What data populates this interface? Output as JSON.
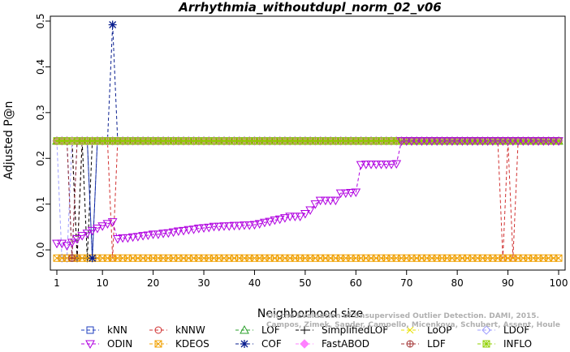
{
  "chart_data": {
    "type": "line",
    "title": "Arrhythmia_withoutdupl_norm_02_v06",
    "xlabel": "Neighborhood size",
    "ylabel": "Adjusted P@n",
    "xlim": [
      1,
      100
    ],
    "ylim": [
      -0.03,
      0.5
    ],
    "xticks": [
      1,
      10,
      20,
      30,
      40,
      50,
      60,
      70,
      80,
      90,
      100
    ],
    "yticks": [
      0.0,
      0.1,
      0.2,
      0.3,
      0.4,
      0.5
    ],
    "grid": false,
    "legend_position": "bottom",
    "citation": "Campos, Zimek, Sander, Campello, Micenkova, Schubert, Assent, Houle\nOn the Evaluation of Unsupervised Outlier Detection. DAMI, 2015.",
    "x": "1..100",
    "series": [
      {
        "name": "kNN",
        "color": "#1f3fbf",
        "marker": "square",
        "segments": [
          {
            "from": 1,
            "to": 100,
            "value": 0.238
          }
        ],
        "exceptions": [
          {
            "x": 4,
            "value": -0.018
          },
          {
            "x": 8,
            "value": -0.018
          }
        ]
      },
      {
        "name": "kNNW",
        "color": "#d03030",
        "marker": "circle",
        "segments": [
          {
            "from": 1,
            "to": 100,
            "value": 0.238
          }
        ],
        "exceptions": [
          {
            "x": 5,
            "value": -0.018
          },
          {
            "x": 12,
            "value": -0.018
          },
          {
            "x": 89,
            "value": -0.018
          },
          {
            "x": 91,
            "value": -0.018
          }
        ]
      },
      {
        "name": "LOF",
        "color": "#2ca02c",
        "marker": "triangle-up",
        "segments": [
          {
            "from": 1,
            "to": 100,
            "value": 0.238
          }
        ]
      },
      {
        "name": "SimplifiedLOF",
        "color": "#000000",
        "marker": "plus",
        "segments": [
          {
            "from": 1,
            "to": 100,
            "value": 0.238
          }
        ],
        "exceptions": [
          {
            "x": 5,
            "value": -0.018
          },
          {
            "x": 7,
            "value": -0.018
          }
        ]
      },
      {
        "name": "LoOP",
        "color": "#e8e000",
        "marker": "x",
        "segments": [
          {
            "from": 1,
            "to": 100,
            "value": 0.238
          }
        ]
      },
      {
        "name": "LDOF",
        "color": "#a0a0ff",
        "marker": "diamond",
        "segments": [
          {
            "from": 1,
            "to": 100,
            "value": 0.238
          }
        ],
        "exceptions": [
          {
            "x": 2,
            "value": -0.018
          },
          {
            "x": 3,
            "value": -0.018
          }
        ]
      },
      {
        "name": "ODIN",
        "color": "#b000e0",
        "marker": "triangle-down",
        "values": [
          0.014,
          0.014,
          0.009,
          0.016,
          0.024,
          0.031,
          0.036,
          0.042,
          0.047,
          0.052,
          0.057,
          0.061,
          0.024,
          0.026,
          0.026,
          0.028,
          0.029,
          0.031,
          0.032,
          0.034,
          0.034,
          0.036,
          0.037,
          0.039,
          0.041,
          0.042,
          0.044,
          0.045,
          0.047,
          0.048,
          0.049,
          0.051,
          0.051,
          0.052,
          0.052,
          0.053,
          0.053,
          0.054,
          0.054,
          0.055,
          0.057,
          0.06,
          0.062,
          0.065,
          0.067,
          0.07,
          0.073,
          0.073,
          0.073,
          0.079,
          0.087,
          0.1,
          0.108,
          0.108,
          0.108,
          0.108,
          0.124,
          0.124,
          0.125,
          0.126,
          0.186,
          0.187,
          0.187,
          0.187,
          0.187,
          0.187,
          0.187,
          0.188,
          0.238,
          0.238,
          0.238,
          0.238,
          0.238,
          0.238,
          0.238,
          0.238,
          0.238,
          0.238,
          0.238,
          0.238,
          0.238,
          0.238,
          0.238,
          0.238,
          0.238,
          0.238,
          0.238,
          0.238,
          0.238,
          0.238,
          0.238,
          0.238,
          0.238,
          0.238,
          0.238,
          0.238,
          0.238,
          0.238,
          0.238,
          0.238
        ]
      },
      {
        "name": "KDEOS",
        "color": "#f0a000",
        "marker": "square-x",
        "segments": [
          {
            "from": 1,
            "to": 100,
            "value": -0.018
          }
        ]
      },
      {
        "name": "COF",
        "color": "#0a1f8f",
        "marker": "asterisk",
        "segments": [
          {
            "from": 1,
            "to": 100,
            "value": 0.238
          }
        ],
        "exceptions": [
          {
            "x": 12,
            "value": 0.492
          },
          {
            "x": 8,
            "value": -0.018
          }
        ]
      },
      {
        "name": "FastABOD",
        "color": "#ff80ff",
        "marker": "diamond-filled",
        "segments": [
          {
            "from": 1,
            "to": 100,
            "value": 0.238
          }
        ]
      },
      {
        "name": "LDF",
        "color": "#a03030",
        "marker": "circle-plus",
        "segments": [
          {
            "from": 1,
            "to": 100,
            "value": 0.238
          }
        ],
        "exceptions": [
          {
            "x": 4,
            "value": -0.018
          }
        ]
      },
      {
        "name": "INFLO",
        "color": "#90d000",
        "marker": "square-asterisk",
        "segments": [
          {
            "from": 1,
            "to": 100,
            "value": 0.238
          }
        ]
      }
    ],
    "legend": [
      [
        "kNN",
        "kNNW",
        "LOF",
        "SimplifiedLOF",
        "LoOP",
        "LDOF"
      ],
      [
        "ODIN",
        "KDEOS",
        "COF",
        "FastABOD",
        "LDF",
        "INFLO"
      ]
    ]
  }
}
